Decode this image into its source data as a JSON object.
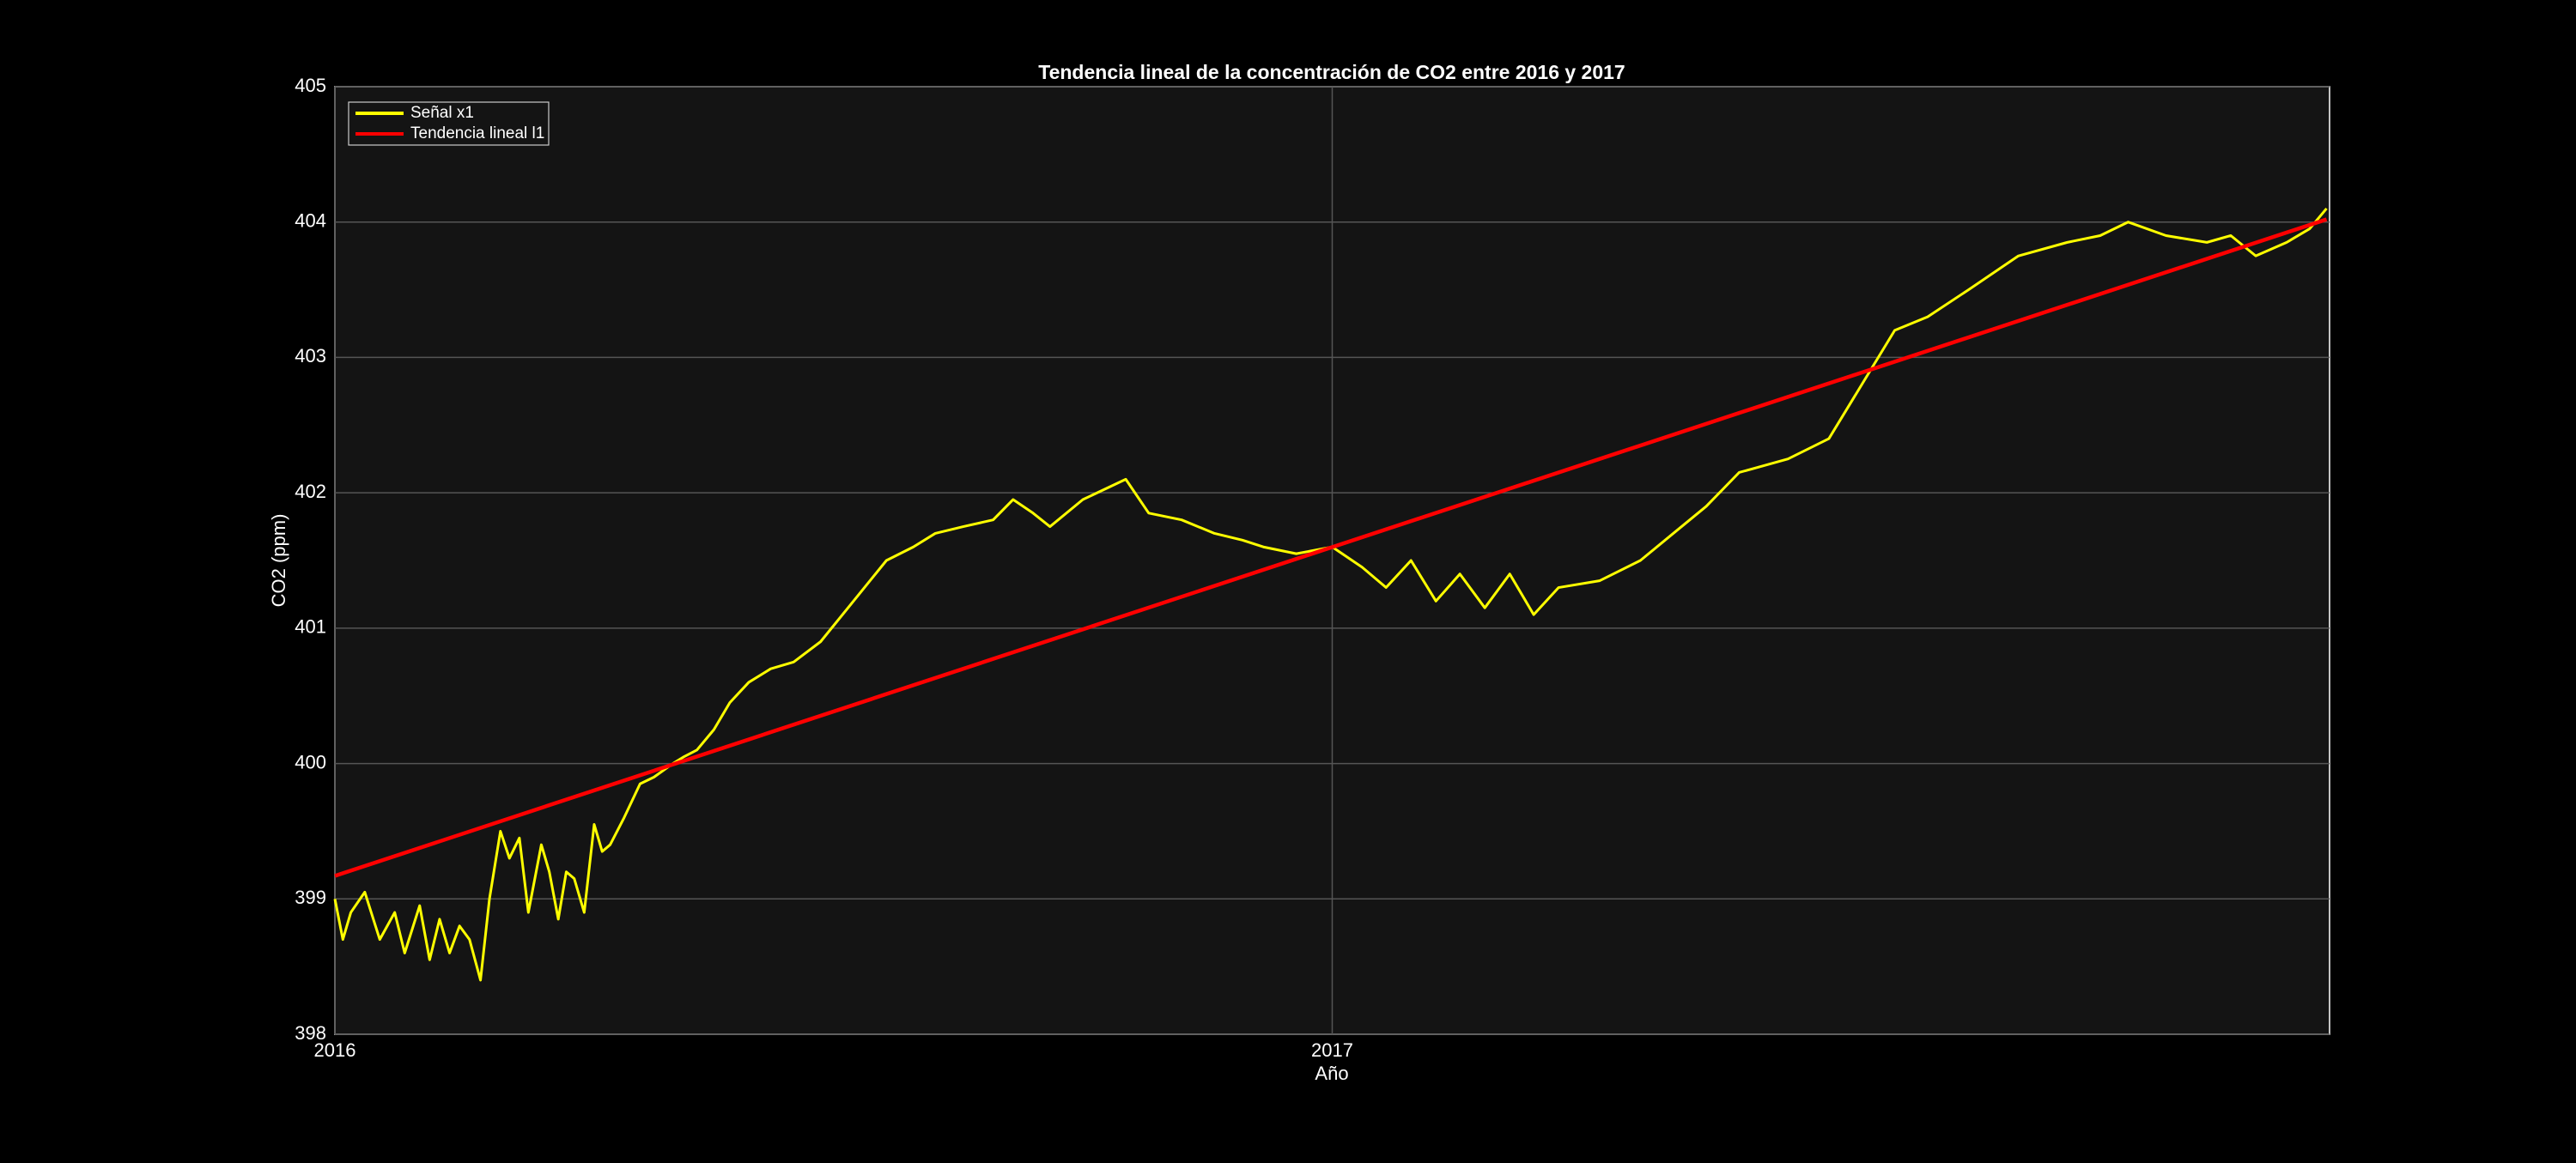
{
  "chart_data": {
    "type": "line",
    "title": "Tendencia lineal de la concentración de CO2 entre 2016 y 2017",
    "x_label": "Año",
    "y_label": "CO2 (ppm)",
    "xlim": [
      2016,
      2018
    ],
    "xticks": [
      2016,
      2017
    ],
    "ylim": [
      398,
      405
    ],
    "yticks": [
      398,
      399,
      400,
      401,
      402,
      403,
      404,
      405
    ],
    "grid": true,
    "legend_position": "northwest",
    "series": [
      {
        "name": "Señal x1",
        "color": "#ffff00",
        "x": [
          2016.0,
          2016.008,
          2016.016,
          2016.03,
          2016.045,
          2016.06,
          2016.07,
          2016.085,
          2016.095,
          2016.105,
          2016.115,
          2016.125,
          2016.135,
          2016.146,
          2016.155,
          2016.166,
          2016.175,
          2016.185,
          2016.194,
          2016.207,
          2016.215,
          2016.224,
          2016.232,
          2016.24,
          2016.25,
          2016.26,
          2016.268,
          2016.276,
          2016.29,
          2016.306,
          2016.32,
          2016.339,
          2016.35,
          2016.363,
          2016.38,
          2016.396,
          2016.415,
          2016.437,
          2016.46,
          2016.487,
          2016.52,
          2016.553,
          2016.58,
          2016.602,
          2016.63,
          2016.66,
          2016.68,
          2016.7,
          2016.717,
          2016.75,
          2016.793,
          2016.816,
          2016.849,
          2016.882,
          2016.91,
          2016.931,
          2016.964,
          2017.0,
          2017.03,
          2017.054,
          2017.079,
          2017.104,
          2017.128,
          2017.153,
          2017.178,
          2017.202,
          2017.227,
          2017.268,
          2017.309,
          2017.342,
          2017.375,
          2017.408,
          2017.457,
          2017.498,
          2017.531,
          2017.564,
          2017.597,
          2017.638,
          2017.688,
          2017.737,
          2017.77,
          2017.798,
          2017.836,
          2017.877,
          2017.901,
          2017.926,
          2017.957,
          2017.98,
          2017.997
        ],
        "values": [
          399.0,
          398.7,
          398.9,
          399.05,
          398.7,
          398.9,
          398.6,
          398.95,
          398.55,
          398.85,
          398.6,
          398.8,
          398.7,
          398.4,
          399.0,
          399.5,
          399.3,
          399.45,
          398.9,
          399.4,
          399.2,
          398.85,
          399.2,
          399.15,
          398.9,
          399.55,
          399.35,
          399.4,
          399.6,
          399.85,
          399.9,
          400.0,
          400.05,
          400.1,
          400.25,
          400.45,
          400.6,
          400.7,
          400.75,
          400.9,
          401.2,
          401.5,
          401.6,
          401.7,
          401.75,
          401.8,
          401.95,
          401.85,
          401.75,
          401.95,
          402.1,
          401.85,
          401.8,
          401.7,
          401.65,
          401.6,
          401.55,
          401.6,
          401.45,
          401.3,
          401.5,
          401.2,
          401.4,
          401.15,
          401.4,
          401.1,
          401.3,
          401.35,
          401.5,
          401.7,
          401.9,
          402.15,
          402.25,
          402.4,
          402.8,
          403.2,
          403.3,
          403.5,
          403.75,
          403.85,
          403.9,
          404.0,
          403.9,
          403.85,
          403.9,
          403.75,
          403.85,
          403.95,
          404.1
        ]
      },
      {
        "name": "Tendencia lineal l1",
        "color": "#ff0000",
        "x": [
          2016,
          2017.997
        ],
        "values": [
          399.17,
          404.02
        ]
      }
    ]
  }
}
